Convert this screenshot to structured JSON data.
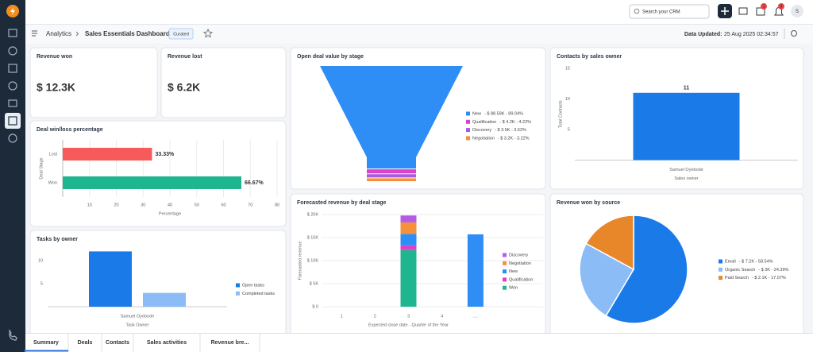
{
  "header": {
    "search_placeholder": "Search your CRM",
    "badges": [
      "1",
      "8"
    ],
    "avatar": "S"
  },
  "breadcrumb": {
    "parent": "Analytics",
    "title": "Sales Essentials Dashboard",
    "badge": "Curated",
    "updated_label": "Data Updated:",
    "updated_value": "25 Aug 2025 02:34:57"
  },
  "widgets": [
    {
      "title": "Revenue won",
      "value": "$ 12.3K",
      "color": "#1c8c61"
    },
    {
      "title": "Revenue lost",
      "value": "$ 6.2K",
      "color": "#e03c3c"
    },
    {
      "title": "Deal win/loss percentage",
      "chart": {
        "type": "hbar",
        "categories": [
          "Lost",
          "Won"
        ],
        "values": [
          33.33,
          66.67
        ],
        "value_labels": [
          "33.33%",
          "66.67%"
        ],
        "colors": [
          "#f65a5b",
          "#1fb58f"
        ],
        "xlim": [
          0,
          80
        ],
        "xticks": [
          10,
          20,
          30,
          40,
          50,
          60,
          70,
          80
        ],
        "xlabel": "Percentage",
        "ylabel": "Deal Stage",
        "grid": true
      }
    },
    {
      "title": "Tasks by owner",
      "chart": {
        "type": "bar",
        "categories": [
          "Samuel Oyebode"
        ],
        "series": [
          {
            "name": "Open tasks",
            "color": "#1a7be8",
            "values": [
              12
            ]
          },
          {
            "name": "Completed tasks",
            "color": "#8bbcf5",
            "values": [
              3
            ]
          }
        ],
        "ylim": [
          0,
          13
        ],
        "yticks": [
          5,
          10
        ],
        "xlabel": "Task Owner",
        "legend": "right",
        "grid": false
      }
    },
    {
      "title": "Open deal value by stage",
      "chart": {
        "type": "funnel",
        "categories": [
          "New",
          "Qualification",
          "Discovery",
          "Negotiation"
        ],
        "values": [
          89.04,
          4.22,
          3.52,
          3.22
        ],
        "value_labels": [
          "- $ 88.59K - 89.04%",
          "- $ 4.2K - 4.22%",
          "- $ 3.5K - 3.52%",
          "- $ 3.2K - 3.22%"
        ],
        "colors": [
          "#2f8ef5",
          "#e040c8",
          "#a65be6",
          "#f5913a"
        ],
        "legend": "right"
      }
    },
    {
      "title": "Forecasted revenue by deal stage",
      "chart": {
        "type": "stacked",
        "categories": [
          "1",
          "2",
          "3",
          "4",
          "...."
        ],
        "series": [
          {
            "name": "Discovery",
            "color": "#b45be8",
            "values": [
              null,
              null,
              1500,
              null,
              null
            ]
          },
          {
            "name": "Negotiation",
            "color": "#f5913a",
            "values": [
              null,
              null,
              2500,
              null,
              null
            ]
          },
          {
            "name": "New",
            "color": "#2f8ef5",
            "values": [
              null,
              null,
              2500,
              null,
              15700
            ]
          },
          {
            "name": "Qualification",
            "color": "#e040c8",
            "values": [
              null,
              null,
              1000,
              null,
              null
            ]
          },
          {
            "name": "Won",
            "color": "#1fb58f",
            "values": [
              null,
              null,
              12300,
              null,
              null
            ]
          }
        ],
        "ylim": [
          0,
          20000
        ],
        "yticks": [
          {
            "value": 0,
            "label": "$ 0"
          },
          {
            "value": 5000,
            "label": "$ 5K"
          },
          {
            "value": 10000,
            "label": "$ 10K"
          },
          {
            "value": 15000,
            "label": "$ 15K"
          },
          {
            "value": 20000,
            "label": "$ 20K"
          }
        ],
        "xlabel": "Expected close date - Quarter of the Year",
        "ylabel": "Forecasted revenue",
        "legend": "right",
        "grid": true
      }
    },
    {
      "title": "Contacts by sales owner",
      "chart": {
        "type": "bar",
        "categories": [
          "Samuel Oyebode"
        ],
        "values": [
          11
        ],
        "color": "#1a7be8",
        "data_labels": true,
        "ylim": [
          0,
          15
        ],
        "yticks": [
          5,
          10,
          15
        ],
        "xlabel": "Sales owner",
        "ylabel": "Total Contacts",
        "grid": false
      }
    },
    {
      "title": "Revenue won by source",
      "chart": {
        "type": "pie",
        "categories": [
          "Email",
          "Organic Search",
          "Paid Search"
        ],
        "values": [
          58.54,
          24.39,
          17.07
        ],
        "value_labels": [
          "- $ 7.2K - 58.54%",
          "- $ 3K - 24.39%",
          "- $ 2.1K - 17.07%"
        ],
        "colors": [
          "#1a7be8",
          "#8bbcf5",
          "#e8862a"
        ],
        "legend": "right"
      }
    }
  ],
  "tabs": [
    "Summary",
    "Deals",
    "Contacts",
    "Sales activities",
    "Revenue bre..."
  ]
}
